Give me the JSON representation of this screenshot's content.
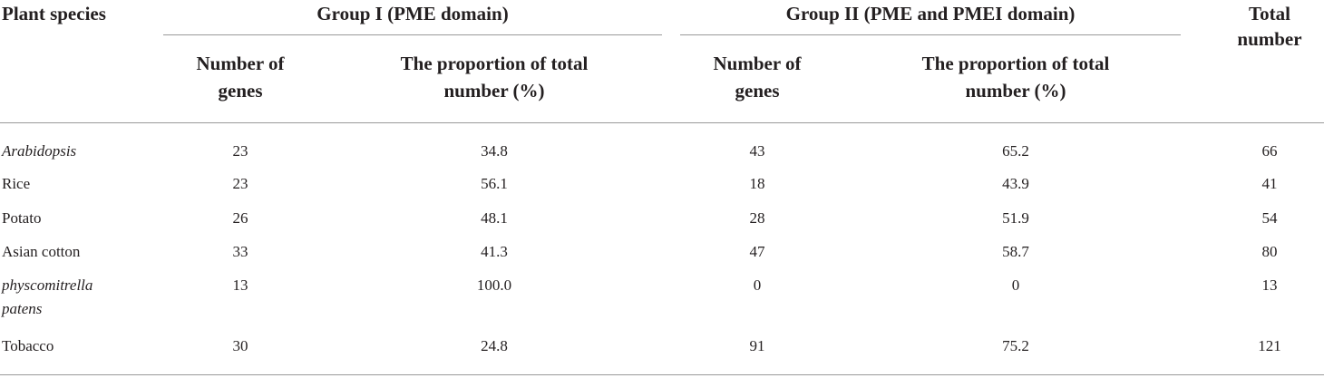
{
  "headers": {
    "plant_species": "Plant species",
    "group1": "Group I (PME domain)",
    "group2": "Group II (PME and PMEI domain)",
    "total_line1": "Total",
    "total_line2": "number",
    "g1_count_line1": "Number of",
    "g1_count_line2": "genes",
    "g1_prop_line1": "The proportion of total",
    "g1_prop_line2": "number (%)",
    "g2_count_line1": "Number of",
    "g2_count_line2": "genes",
    "g2_prop_line1": "The proportion of total",
    "g2_prop_line2": "number (%)"
  },
  "rows": [
    {
      "species": "Arabidopsis",
      "species2": "",
      "italic": true,
      "g1_count": "23",
      "g1_prop": "34.8",
      "g2_count": "43",
      "g2_prop": "65.2",
      "total": "66"
    },
    {
      "species": "Rice",
      "species2": "",
      "italic": false,
      "g1_count": "23",
      "g1_prop": "56.1",
      "g2_count": "18",
      "g2_prop": "43.9",
      "total": "41"
    },
    {
      "species": "Potato",
      "species2": "",
      "italic": false,
      "g1_count": "26",
      "g1_prop": "48.1",
      "g2_count": "28",
      "g2_prop": "51.9",
      "total": "54"
    },
    {
      "species": "Asian cotton",
      "species2": "",
      "italic": false,
      "g1_count": "33",
      "g1_prop": "41.3",
      "g2_count": "47",
      "g2_prop": "58.7",
      "total": "80"
    },
    {
      "species": "physcomitrella",
      "species2": "patens",
      "italic": true,
      "g1_count": "13",
      "g1_prop": "100.0",
      "g2_count": "0",
      "g2_prop": "0",
      "total": "13"
    },
    {
      "species": "Tobacco",
      "species2": "",
      "italic": false,
      "g1_count": "30",
      "g1_prop": "24.8",
      "g2_count": "91",
      "g2_prop": "75.2",
      "total": "121"
    }
  ]
}
